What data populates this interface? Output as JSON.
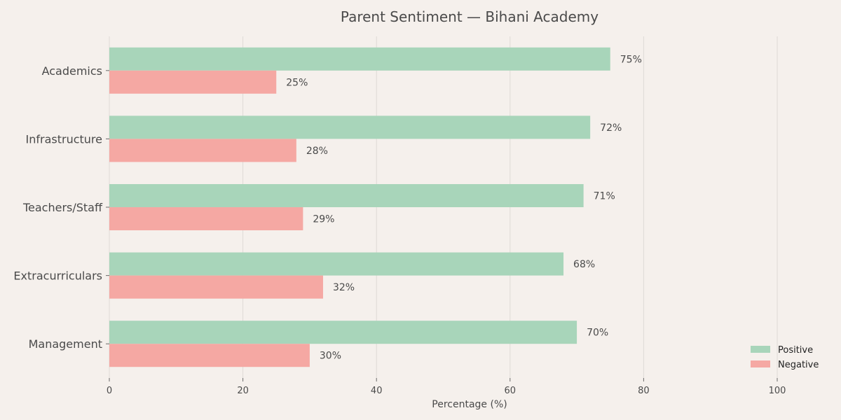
{
  "chart_data": {
    "type": "bar",
    "orientation": "horizontal",
    "title": "Parent Sentiment — Bihani Academy",
    "xlabel": "Percentage (%)",
    "ylabel": "",
    "xlim": [
      0,
      100
    ],
    "xticks": [
      0,
      20,
      40,
      60,
      80,
      100
    ],
    "categories": [
      "Academics",
      "Infrastructure",
      "Teachers/Staff",
      "Extracurriculars",
      "Management"
    ],
    "series": [
      {
        "name": "Positive",
        "values": [
          75,
          72,
          71,
          68,
          70
        ],
        "color": "#a8d5ba"
      },
      {
        "name": "Negative",
        "values": [
          25,
          28,
          29,
          32,
          30
        ],
        "color": "#f5a8a3"
      }
    ],
    "value_suffix": "%",
    "grid": "vertical",
    "legend_position": "bottom-right"
  }
}
